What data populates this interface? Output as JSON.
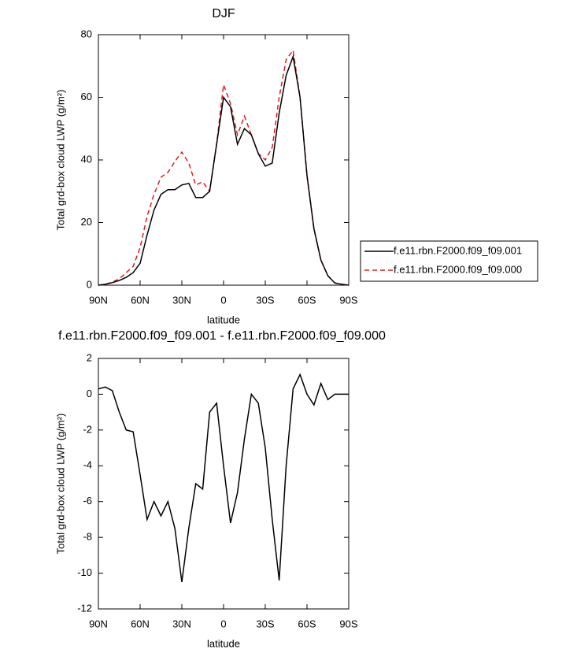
{
  "chart_data": [
    {
      "type": "line",
      "title": "DJF",
      "x_label": "latitude",
      "y_label": "Total grd-box cloud LWP (g/m²)",
      "x": [
        90,
        85,
        80,
        75,
        70,
        65,
        60,
        55,
        50,
        45,
        40,
        35,
        30,
        25,
        20,
        15,
        10,
        5,
        0,
        -5,
        -10,
        -15,
        -20,
        -25,
        -30,
        -35,
        -40,
        -45,
        -50,
        -55,
        -60,
        -65,
        -70,
        -75,
        -80,
        -85,
        -90
      ],
      "xlim": [
        90,
        -90
      ],
      "xticks": [
        {
          "value": 90,
          "label": "90N"
        },
        {
          "value": 60,
          "label": "60N"
        },
        {
          "value": 30,
          "label": "30N"
        },
        0,
        {
          "value": -30,
          "label": "30S"
        },
        {
          "value": -60,
          "label": "60S"
        },
        {
          "value": -90,
          "label": "90S"
        }
      ],
      "ylim": [
        0,
        80
      ],
      "yticks": [
        0,
        20,
        40,
        60,
        80
      ],
      "legend_position": "right",
      "series": [
        {
          "name": "f.e11.rbn.F2000.f09_f09.000",
          "color": "#e41a1c",
          "line_style": "dashed",
          "values": [
            0,
            0.3,
            1,
            2,
            4,
            6,
            12,
            22,
            29,
            34.5,
            36,
            39.5,
            42.5,
            39,
            32,
            33,
            30,
            45,
            64,
            58,
            48,
            54,
            48,
            42,
            40,
            44,
            60,
            72,
            75,
            60,
            35,
            18,
            8,
            3,
            0.7,
            0.3,
            0
          ]
        },
        {
          "name": "f.e11.rbn.F2000.f09_f09.001",
          "color": "#000000",
          "line_style": "solid",
          "values": [
            0,
            0.3,
            0.8,
            1.5,
            2.5,
            4,
            7,
            16,
            24,
            29,
            30.5,
            30.5,
            32,
            32.5,
            28,
            28,
            30,
            45,
            60,
            57,
            45,
            50,
            48,
            42,
            38,
            39,
            55,
            67,
            73,
            60,
            35,
            18,
            8,
            3,
            0.7,
            0.3,
            0
          ]
        }
      ]
    },
    {
      "type": "line",
      "title": "f.e11.rbn.F2000.f09_f09.001 - f.e11.rbn.F2000.f09_f09.000",
      "x_label": "latitude",
      "y_label": "Total grd-box cloud LWP (g/m²)",
      "x": [
        90,
        85,
        80,
        75,
        70,
        65,
        60,
        55,
        50,
        45,
        40,
        35,
        30,
        25,
        20,
        15,
        10,
        5,
        0,
        -5,
        -10,
        -15,
        -20,
        -25,
        -30,
        -35,
        -40,
        -45,
        -50,
        -55,
        -60,
        -65,
        -70,
        -75,
        -80,
        -85,
        -90
      ],
      "xlim": [
        90,
        -90
      ],
      "xticks": [
        {
          "value": 90,
          "label": "90N"
        },
        {
          "value": 60,
          "label": "60N"
        },
        {
          "value": 30,
          "label": "30N"
        },
        0,
        {
          "value": -30,
          "label": "30S"
        },
        {
          "value": -60,
          "label": "60S"
        },
        {
          "value": -90,
          "label": "90S"
        }
      ],
      "ylim": [
        -12,
        2
      ],
      "yticks": [
        -12,
        -10,
        -8,
        -6,
        -4,
        -2,
        0,
        2
      ],
      "color": "#000000",
      "values": [
        0.3,
        0.4,
        0.2,
        -1.0,
        -2.0,
        -2.1,
        -4.5,
        -7.0,
        -6.0,
        -6.8,
        -6.0,
        -7.5,
        -10.5,
        -7.5,
        -5.0,
        -5.3,
        -1.0,
        -0.5,
        -4,
        -7.2,
        -5.5,
        -2.5,
        0,
        -0.5,
        -3,
        -7,
        -10.4,
        -4,
        0.3,
        1.1,
        0,
        -0.6,
        0.6,
        -0.3,
        0,
        0,
        0
      ]
    }
  ]
}
